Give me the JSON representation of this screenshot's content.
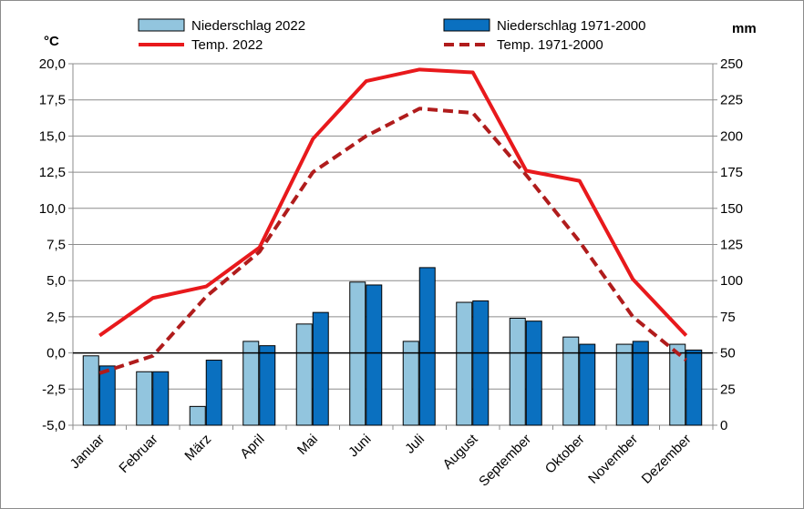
{
  "chart_data": {
    "type": "bar+line",
    "categories": [
      "Januar",
      "Februar",
      "März",
      "April",
      "Mai",
      "Juni",
      "Juli",
      "August",
      "September",
      "Oktober",
      "November",
      "Dezember"
    ],
    "bar_series": [
      {
        "name": "Niederschlag 2022",
        "color": "#92c5de",
        "values": [
          48,
          37,
          13,
          58,
          70,
          99,
          58,
          85,
          74,
          61,
          56,
          56
        ]
      },
      {
        "name": "Niederschlag 1971-2000",
        "color": "#0a70c0",
        "values": [
          41,
          37,
          45,
          55,
          78,
          97,
          109,
          86,
          72,
          56,
          58,
          52
        ]
      }
    ],
    "line_series": [
      {
        "name": "Temp. 2022",
        "color": "#e8191c",
        "dash": "solid",
        "values": [
          1.2,
          3.8,
          4.6,
          7.3,
          14.8,
          18.8,
          19.6,
          19.4,
          12.6,
          11.9,
          5.1,
          1.2
        ]
      },
      {
        "name": "Temp. 1971-2000",
        "color": "#b01c1c",
        "dash": "dashed",
        "values": [
          -1.4,
          -0.2,
          3.9,
          7.0,
          12.5,
          15.0,
          16.9,
          16.6,
          12.3,
          7.7,
          2.5,
          -0.5
        ]
      }
    ],
    "left_axis": {
      "unit": "°C",
      "ylim": [
        -5,
        20
      ],
      "ticks": [
        "-5,0",
        "-2,5",
        "0,0",
        "2,5",
        "5,0",
        "7,5",
        "10,0",
        "12,5",
        "15,0",
        "17,5",
        "20,0"
      ]
    },
    "right_axis": {
      "unit": "mm",
      "ylim": [
        0,
        250
      ],
      "ticks": [
        "0",
        "25",
        "50",
        "75",
        "100",
        "125",
        "150",
        "175",
        "200",
        "225",
        "250"
      ]
    },
    "grid": true,
    "legend_position": "top"
  }
}
